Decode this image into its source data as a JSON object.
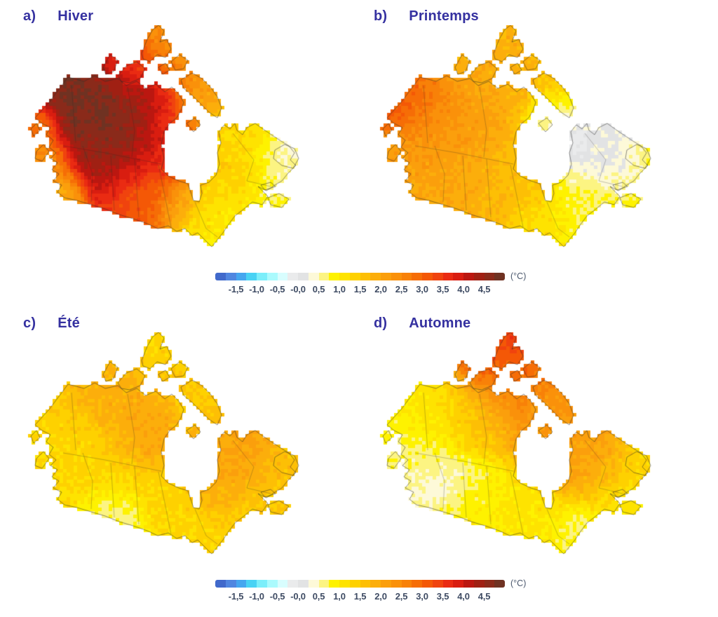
{
  "figure": {
    "background": "#ffffff",
    "title_color": "#3531a0",
    "tick_text_color": "#3e4b63",
    "unit_text_color": "#4a576c",
    "coastline_color": "#2a2a2a"
  },
  "panels": [
    {
      "label": "a)",
      "title": "Hiver"
    },
    {
      "label": "b)",
      "title": "Printemps"
    },
    {
      "label": "c)",
      "title": "Été"
    },
    {
      "label": "d)",
      "title": "Automne"
    }
  ],
  "legend": {
    "unit": "(°C)",
    "ticks": [
      "-1,5",
      "-1,0",
      "-0,5",
      "-0,0",
      "0,5",
      "1,0",
      "1,5",
      "2,0",
      "2,5",
      "3,0",
      "3,5",
      "4,0",
      "4,5"
    ],
    "tick_values": [
      -1.5,
      -1.0,
      -0.5,
      0.0,
      0.5,
      1.0,
      1.5,
      2.0,
      2.5,
      3.0,
      3.5,
      4.0,
      4.5
    ],
    "domain": [
      -2.0,
      5.0
    ],
    "step": 0.25,
    "colors": [
      "#4169cb",
      "#5086e0",
      "#45a6ef",
      "#48d2f4",
      "#7beefa",
      "#aafafd",
      "#d8fdfe",
      "#eaebec",
      "#e2e3e4",
      "#fdf9d8",
      "#fcf482",
      "#fef200",
      "#fee300",
      "#fed100",
      "#fdbf05",
      "#fcae0b",
      "#fb9f0c",
      "#fa910a",
      "#f88108",
      "#f66d06",
      "#f45806",
      "#f0430e",
      "#ea2b12",
      "#d91d10",
      "#bb1710",
      "#a02013",
      "#8a2a1a",
      "#6f3222"
    ]
  },
  "chart_data": {
    "type": "heatmap",
    "description_visible": "Quatre cartes saisonnières du Canada avec échelle de couleurs",
    "seasons": [
      "Hiver",
      "Printemps",
      "Été",
      "Automne"
    ],
    "colorbar_ticks_celsius": [
      -1.5,
      -1.0,
      -0.5,
      0.0,
      0.5,
      1.0,
      1.5,
      2.0,
      2.5,
      3.0,
      3.5,
      4.0,
      4.5
    ],
    "unit": "°C"
  }
}
